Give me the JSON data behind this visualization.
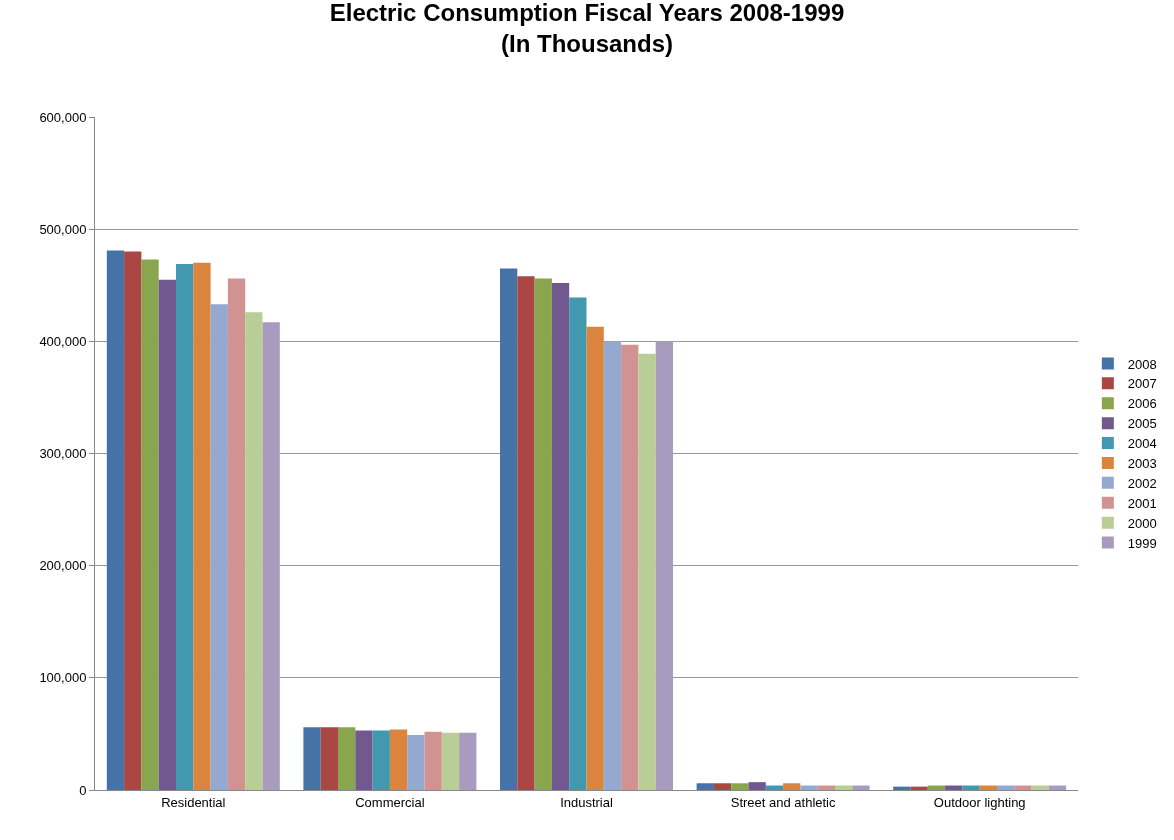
{
  "chart_data": {
    "type": "bar",
    "title": "Electric Consumption Fiscal Years 2008-1999\n(In Thousands)",
    "categories": [
      "Residential",
      "Commercial",
      "Industrial",
      "Street and athletic",
      "Outdoor lighting"
    ],
    "series": [
      {
        "name": "2008",
        "color": "#4572a7",
        "values": [
          481000,
          56000,
          465000,
          6000,
          3000
        ]
      },
      {
        "name": "2007",
        "color": "#aa4643",
        "values": [
          480000,
          56000,
          458000,
          6000,
          3000
        ]
      },
      {
        "name": "2006",
        "color": "#89a54e",
        "values": [
          473000,
          56000,
          456000,
          6000,
          4000
        ]
      },
      {
        "name": "2005",
        "color": "#71588f",
        "values": [
          455000,
          53000,
          452000,
          7000,
          4000
        ]
      },
      {
        "name": "2004",
        "color": "#4198af",
        "values": [
          469000,
          53000,
          439000,
          4000,
          4000
        ]
      },
      {
        "name": "2003",
        "color": "#db843d",
        "values": [
          470000,
          54000,
          413000,
          6000,
          4000
        ]
      },
      {
        "name": "2002",
        "color": "#93a9cf",
        "values": [
          433000,
          49000,
          400000,
          4000,
          4000
        ]
      },
      {
        "name": "2001",
        "color": "#d19392",
        "values": [
          456000,
          52000,
          397000,
          4000,
          4000
        ]
      },
      {
        "name": "2000",
        "color": "#b9cd96",
        "values": [
          426000,
          51000,
          389000,
          4000,
          4000
        ]
      },
      {
        "name": "1999",
        "color": "#a99bbd",
        "values": [
          417000,
          51000,
          400000,
          4000,
          4000
        ]
      }
    ],
    "ylim": [
      0,
      600000
    ],
    "yticks": [
      {
        "value": 0,
        "label": "0"
      },
      {
        "value": 100000,
        "label": "100,000"
      },
      {
        "value": 200000,
        "label": "200,000"
      },
      {
        "value": 300000,
        "label": "300,000"
      },
      {
        "value": 400000,
        "label": "400,000"
      },
      {
        "value": 500000,
        "label": "500,000"
      },
      {
        "value": 600000,
        "label": "600,000"
      }
    ],
    "grid": "y",
    "legend": "right"
  }
}
